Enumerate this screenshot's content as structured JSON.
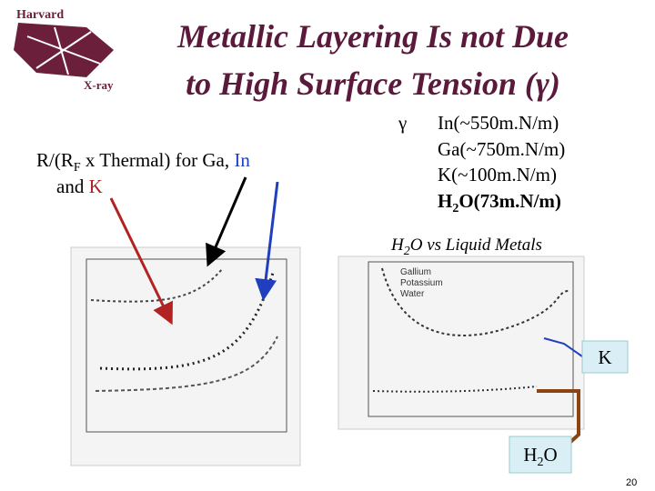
{
  "logo": {
    "top": "Harvard",
    "bottom": "X-ray"
  },
  "title": {
    "line1": "Metallic Layering Is not Due",
    "line2": "to High Surface Tension (γ)"
  },
  "left_text": {
    "part1": "R/(R",
    "sub": "F",
    "part2": " x Thermal) for Ga, ",
    "in": "In",
    "and": "and ",
    "k": "K"
  },
  "tension_list": {
    "symbol": "γ",
    "items": [
      "In(~550m.N/m)",
      "Ga(~750m.N/m)",
      "K(~100m.N/m)"
    ],
    "water": {
      "h": "H",
      "sub": "2",
      "rest": "O(73m.N/m)"
    }
  },
  "comparison_label": {
    "h": "H",
    "sub": "2",
    "rest": "O vs Liquid Metals"
  },
  "right_plot_legend": [
    "Gallium",
    "Potassium",
    "Water"
  ],
  "callouts": {
    "k": "K",
    "water": {
      "h": "H",
      "sub": "2",
      "rest": "O"
    }
  },
  "page_number": "20"
}
